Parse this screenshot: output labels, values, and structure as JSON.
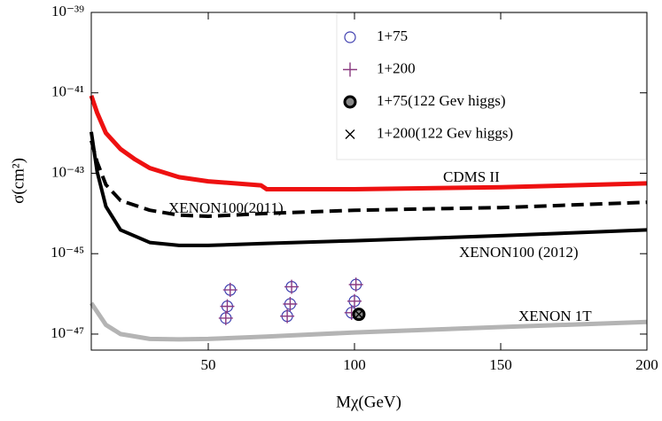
{
  "chart_data": {
    "type": "line",
    "x_label": "Mχ(GeV)",
    "y_label": "σ(cm²)",
    "xlim": [
      10,
      200
    ],
    "xticks": [
      50,
      100,
      150,
      200
    ],
    "ylim": [
      4e-48,
      1e-39
    ],
    "ylog": true,
    "yticks": [
      {
        "value": 1e-39,
        "label": "10⁻³⁹"
      },
      {
        "value": 1e-41,
        "label": "10⁻⁴¹"
      },
      {
        "value": 1e-43,
        "label": "10⁻⁴³"
      },
      {
        "value": 1e-45,
        "label": "10⁻⁴⁵"
      },
      {
        "value": 1e-47,
        "label": "10⁻⁴⁷"
      }
    ],
    "series": [
      {
        "name": "CDMS II",
        "color": "#ee1111",
        "width": 5,
        "dashed": false,
        "x": [
          10,
          12,
          15,
          20,
          25,
          30,
          40,
          50,
          68,
          70,
          100,
          150,
          200
        ],
        "values": [
          8.5e-42,
          3.2e-42,
          1e-42,
          4e-43,
          2.2e-43,
          1.35e-43,
          8e-44,
          6.3e-44,
          5e-44,
          4e-44,
          4e-44,
          4.5e-44,
          5.6e-44
        ]
      },
      {
        "name": "XENON100(2011)",
        "color": "#000000",
        "width": 4,
        "dashed": true,
        "x": [
          10,
          12,
          15,
          20,
          30,
          40,
          50,
          70,
          100,
          150,
          200
        ],
        "values": [
          6.5e-43,
          1.9e-43,
          5.2e-44,
          2.1e-44,
          1.2e-44,
          9.1e-45,
          8.5e-45,
          1e-44,
          1.2e-44,
          1.4e-44,
          1.9e-44
        ]
      },
      {
        "name": "XENON100 (2012)",
        "color": "#000000",
        "width": 4,
        "dashed": false,
        "x": [
          10,
          12,
          15,
          20,
          30,
          40,
          50,
          70,
          100,
          150,
          200
        ],
        "values": [
          1.07e-42,
          1.1e-43,
          1.5e-44,
          3.9e-45,
          1.9e-45,
          1.6e-45,
          1.6e-45,
          1.8e-45,
          2.1e-45,
          2.8e-45,
          3.9e-45
        ]
      },
      {
        "name": "XENON 1T",
        "color": "#b4b4b4",
        "width": 5,
        "dashed": false,
        "x": [
          10,
          15,
          20,
          30,
          40,
          50,
          70,
          100,
          150,
          200
        ],
        "values": [
          5.9e-47,
          1.7e-47,
          1e-47,
          7.6e-48,
          7.4e-48,
          7.6e-48,
          8.7e-48,
          1.1e-47,
          1.5e-47,
          2e-47
        ]
      }
    ],
    "points": [
      {
        "name": "1+75",
        "color": "#4040b0",
        "marker": "circle",
        "x": [
          56,
          56.5,
          57.5,
          77,
          78,
          78.5,
          99,
          100,
          100.5
        ],
        "values": [
          2.5e-47,
          4.9e-47,
          1.26e-46,
          2.8e-47,
          5.6e-47,
          1.5e-46,
          3.4e-47,
          6.6e-47,
          1.7e-46
        ]
      },
      {
        "name": "1+200",
        "color": "#8a3a80",
        "marker": "plus",
        "x": [
          56,
          56.5,
          57.5,
          77,
          78,
          78.5,
          99,
          100,
          100.5
        ],
        "values": [
          2.5e-47,
          4.9e-47,
          1.26e-46,
          2.8e-47,
          5.6e-47,
          1.5e-46,
          3.4e-47,
          6.6e-47,
          1.7e-46
        ]
      },
      {
        "name": "1+75(122 Gev higgs)",
        "color": "#888888",
        "marker": "filled-circle",
        "x": [
          101.5
        ],
        "values": [
          3.1e-47
        ]
      },
      {
        "name": "1+200(122 Gev higgs)",
        "color": "#000000",
        "marker": "cross",
        "x": [
          101.5
        ],
        "values": [
          3.1e-47
        ]
      }
    ]
  }
}
